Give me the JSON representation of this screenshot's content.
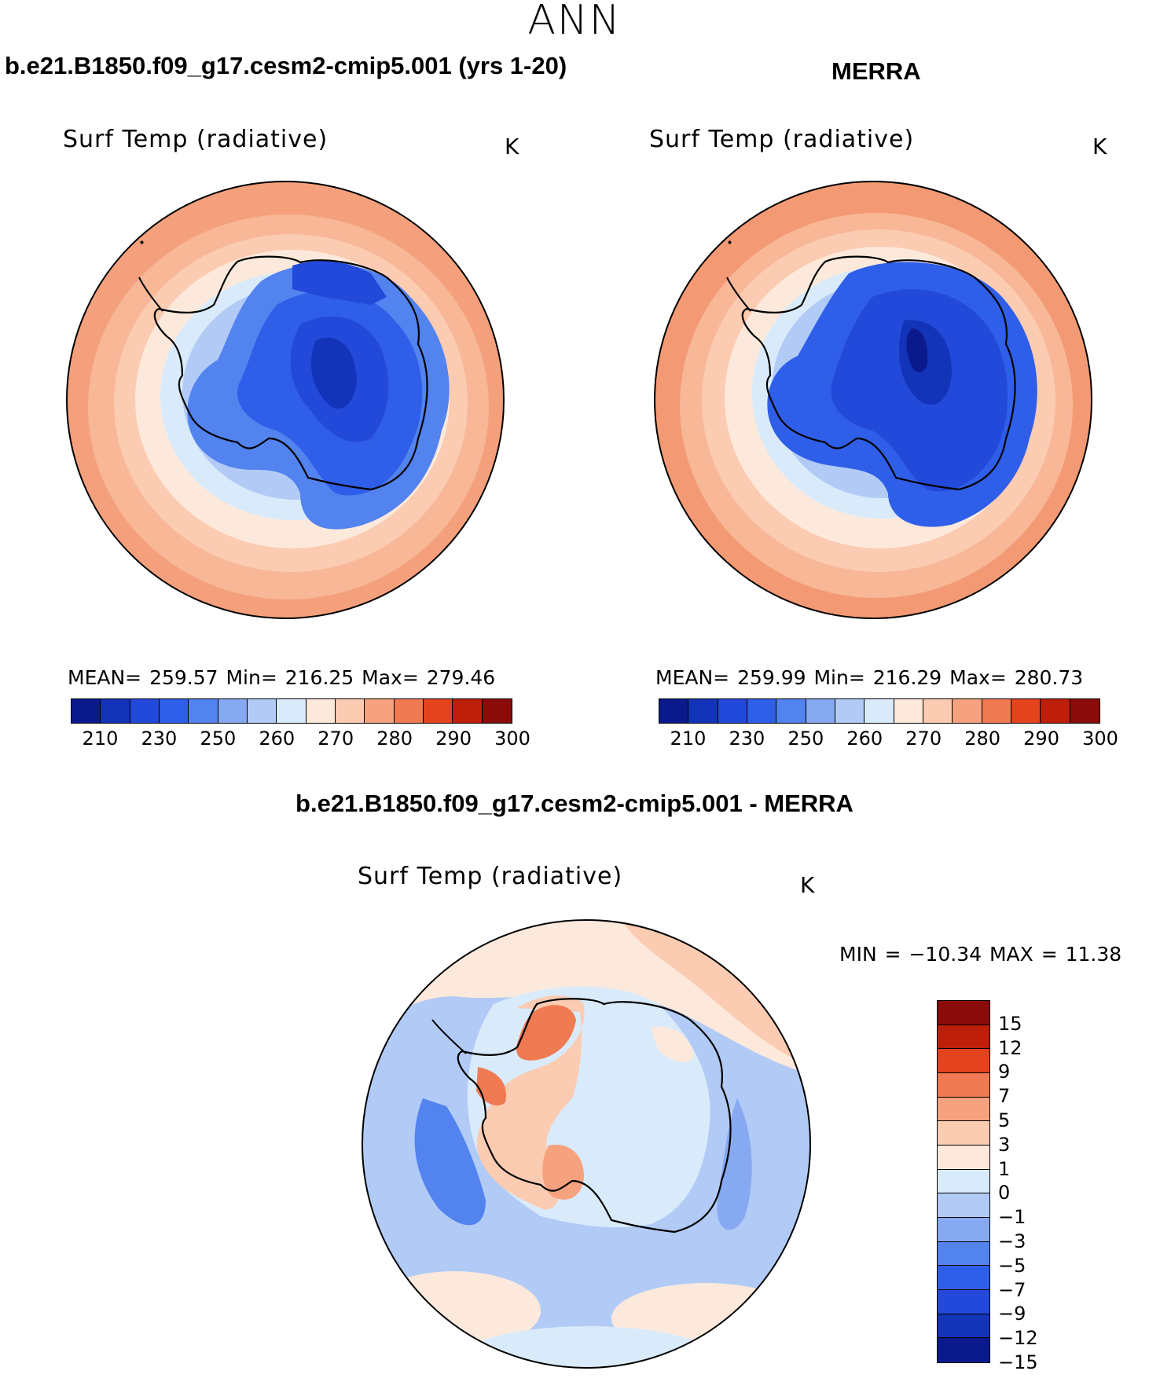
{
  "figure": {
    "title": "ANN",
    "colors": {
      "deepBlue": "#0a1a8c",
      "blue": "#2a58e6",
      "lightBlue": "#aac8f4",
      "paleBlue": "#d6e9fb",
      "peach": "#fde6d6",
      "salmon": "#f6a27e",
      "red": "#e4431e",
      "darkRed": "#8b0b0b",
      "coast": "#000000"
    }
  },
  "chart_data": [
    {
      "type": "heatmap",
      "panel": "model",
      "case_title": "b.e21.B1850.f09_g17.cesm2-cmip5.001 (yrs 1-20)",
      "field_title": "Surf Temp (radiative)",
      "units": "K",
      "projection": "south polar stereographic",
      "stats_text": "MEAN=  259.57    Min=  216.25    Max=  279.46",
      "stats": {
        "mean": 259.57,
        "min": 216.25,
        "max": 279.46
      },
      "levels": [
        210,
        220,
        230,
        240,
        250,
        255,
        260,
        265,
        270,
        275,
        280,
        285,
        290,
        295,
        300
      ],
      "colorbar_tick_labels": [
        "210",
        "230",
        "250",
        "260",
        "270",
        "280",
        "290",
        "300"
      ],
      "colorbar_colors": [
        "#0a1a8c",
        "#1334b8",
        "#2249d9",
        "#2f5fe8",
        "#5283ef",
        "#86a9f2",
        "#b1cbf6",
        "#d9ebfb",
        "#fde9db",
        "#fbcbb2",
        "#f6a27e",
        "#f07a52",
        "#e4431e",
        "#bd1f0b",
        "#8b0b0b"
      ]
    },
    {
      "type": "heatmap",
      "panel": "obs",
      "case_title": "MERRA",
      "field_title": "Surf Temp (radiative)",
      "units": "K",
      "projection": "south polar stereographic",
      "stats_text": "MEAN=  259.99    Min=  216.29    Max=  280.73",
      "stats": {
        "mean": 259.99,
        "min": 216.29,
        "max": 280.73
      },
      "levels": [
        210,
        220,
        230,
        240,
        250,
        255,
        260,
        265,
        270,
        275,
        280,
        285,
        290,
        295,
        300
      ],
      "colorbar_tick_labels": [
        "210",
        "230",
        "250",
        "260",
        "270",
        "280",
        "290",
        "300"
      ],
      "colorbar_colors": [
        "#0a1a8c",
        "#1334b8",
        "#2249d9",
        "#2f5fe8",
        "#5283ef",
        "#86a9f2",
        "#b1cbf6",
        "#d9ebfb",
        "#fde9db",
        "#fbcbb2",
        "#f6a27e",
        "#f07a52",
        "#e4431e",
        "#bd1f0b",
        "#8b0b0b"
      ]
    },
    {
      "type": "heatmap",
      "panel": "difference",
      "case_title": "b.e21.B1850.f09_g17.cesm2-cmip5.001 - MERRA",
      "field_title": "Surf Temp (radiative)",
      "units": "K",
      "projection": "south polar stereographic",
      "stats_text": "MIN = −10.34 MAX =   11.38",
      "stats": {
        "min": -10.34,
        "max": 11.38
      },
      "levels": [
        -15,
        -12,
        -9,
        -7,
        -5,
        -3,
        -1,
        0,
        1,
        3,
        5,
        7,
        9,
        12,
        15
      ],
      "colorbar_tick_labels": [
        "15",
        "12",
        "9",
        "7",
        "5",
        "3",
        "1",
        "0",
        "−1",
        "−3",
        "−5",
        "−7",
        "−9",
        "−12",
        "−15"
      ],
      "colorbar_colors_top_to_bottom": [
        "#8b0b0b",
        "#bd1f0b",
        "#e4431e",
        "#f07a52",
        "#f6a27e",
        "#fbcbb2",
        "#fde9db",
        "#d9ebfb",
        "#b1cbf6",
        "#86a9f2",
        "#5283ef",
        "#2f5fe8",
        "#2249d9",
        "#1334b8",
        "#0a1a8c"
      ]
    }
  ]
}
